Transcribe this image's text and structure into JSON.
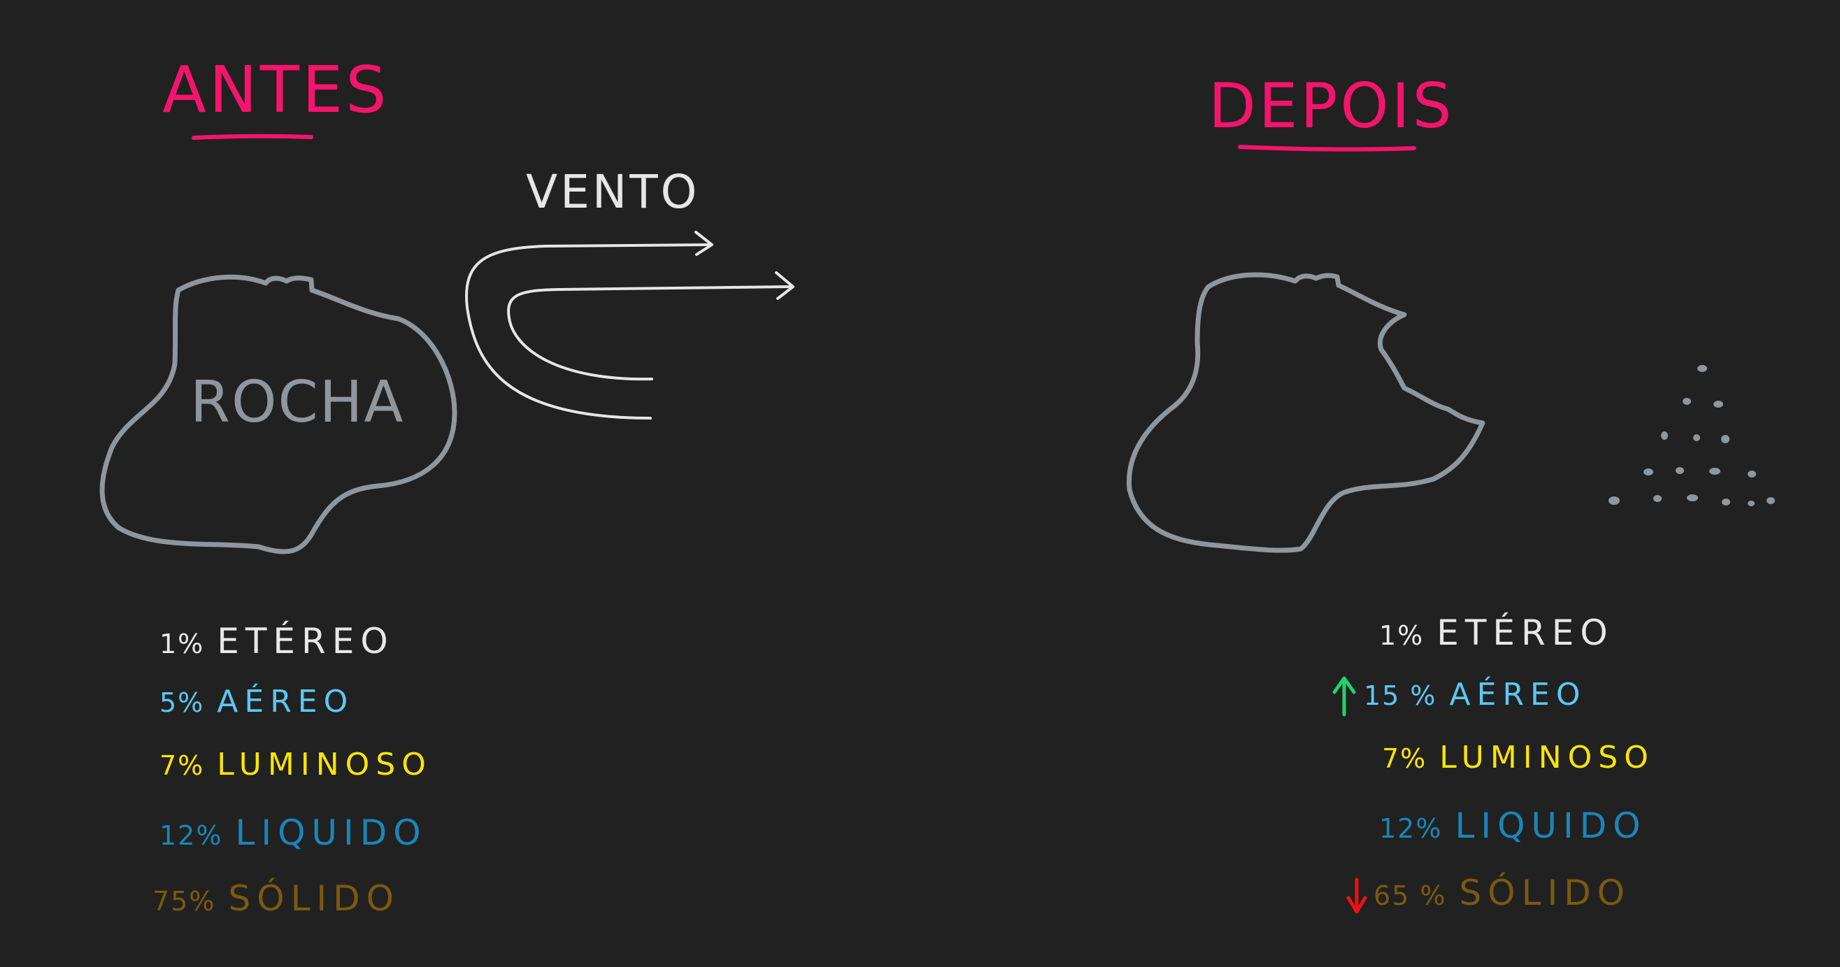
{
  "colors": {
    "background": "#212121",
    "title": "#f5146b",
    "outline": "#8f979e",
    "wind": "#e6e6e6",
    "etereo": "#e8e8e8",
    "aereo": "#5cc8f2",
    "luminoso": "#ffe500",
    "liquido": "#1a86b8",
    "solido": "#7a5a10",
    "arrow_up": "#22d36a",
    "arrow_down": "#ee1111"
  },
  "before": {
    "title": "ANTES",
    "rock_label": "ROCHA",
    "stats": [
      {
        "pct": "1%",
        "label": "ETÉREO",
        "color": "etereo"
      },
      {
        "pct": "5%",
        "label": "AÉREO",
        "color": "aereo"
      },
      {
        "pct": "7%",
        "label": "LUMINOSO",
        "color": "luminoso"
      },
      {
        "pct": "12%",
        "label": "LIQUIDO",
        "color": "liquido"
      },
      {
        "pct": "75%",
        "label": "SÓLIDO",
        "color": "solido"
      }
    ]
  },
  "wind": {
    "label": "VENTO"
  },
  "after": {
    "title": "DEPOIS",
    "stats": [
      {
        "pct": "1%",
        "label": "ETÉREO",
        "color": "etereo",
        "trend": "none"
      },
      {
        "pct": "15 %",
        "label": "AÉREO",
        "color": "aereo",
        "trend": "up"
      },
      {
        "pct": "7%",
        "label": "LUMINOSO",
        "color": "luminoso",
        "trend": "none"
      },
      {
        "pct": "12%",
        "label": "LIQUIDO",
        "color": "liquido",
        "trend": "none"
      },
      {
        "pct": "65 %",
        "label": "SÓLIDO",
        "color": "solido",
        "trend": "down"
      }
    ]
  }
}
